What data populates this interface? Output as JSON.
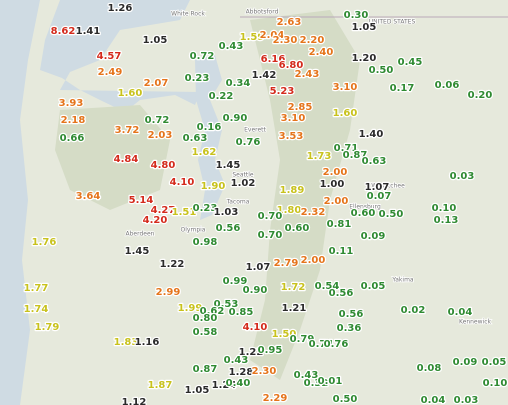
{
  "places": [
    "UNITED STATES",
    "White Rock",
    "Abbotsford",
    "Everett",
    "Seattle",
    "Tacoma",
    "Olympia",
    "Aberdeen",
    "Yakima",
    "Wenatchee",
    "Ellensburg",
    "Kennewick"
  ],
  "readings": [
    "1.26",
    "8.62",
    "1.41",
    "1.05",
    "4.57",
    "0.72",
    "0.43",
    "1.59",
    "2.04",
    "2.63",
    "2.30",
    "2.20",
    "0.30",
    "1.05",
    "2.49",
    "0.23",
    "6.16",
    "6.80",
    "2.40",
    "1.20",
    "0.50",
    "0.45",
    "1.42",
    "0.34",
    "2.43",
    "2.07",
    "1.60",
    "0.17",
    "0.06",
    "0.20",
    "0.22",
    "5.23",
    "3.10",
    "3.93",
    "2.85",
    "2.18",
    "0.72",
    "0.90",
    "3.10",
    "1.60",
    "3.72",
    "2.03",
    "0.16",
    "3.53",
    "0.66",
    "0.63",
    "0.76",
    "1.40",
    "1.62",
    "0.71",
    "0.87",
    "0.63",
    "1.73",
    "4.84",
    "4.80",
    "1.45",
    "1.90",
    "1.02",
    "4.10",
    "1.07",
    "0.03",
    "2.00",
    "1.00",
    "1.89",
    "3.64",
    "5.14",
    "2.00",
    "0.07",
    "4.27",
    "1.51",
    "0.23",
    "1.03",
    "1.80",
    "2.32",
    "0.60",
    "0.50",
    "0.10",
    "4.20",
    "0.70",
    "0.60",
    "0.81",
    "0.13",
    "0.56",
    "1.76",
    "0.98",
    "0.70",
    "0.09",
    "1.45",
    "1.22",
    "0.11",
    "1.07",
    "2.79",
    "2.00",
    "0.99",
    "1.72",
    "0.54",
    "0.56",
    "0.05",
    "1.77",
    "2.99",
    "0.90",
    "1.74",
    "0.53",
    "1.99",
    "0.62",
    "0.85",
    "1.21",
    "0.56",
    "0.02",
    "0.04",
    "0.80",
    "1.79",
    "0.58",
    "4.10",
    "0.36",
    "1.50",
    "0.79",
    "0.74",
    "0.76",
    "1.83",
    "1.16",
    "1.22",
    "0.95",
    "0.43",
    "0.09",
    "0.05",
    "0.87",
    "1.28",
    "2.30",
    "0.43",
    "0.08",
    "1.87",
    "1.05",
    "1.24",
    "0.40",
    "0.32",
    "0.01",
    "0.10",
    "1.12",
    "2.29",
    "0.50",
    "0.04",
    "0.03"
  ]
}
